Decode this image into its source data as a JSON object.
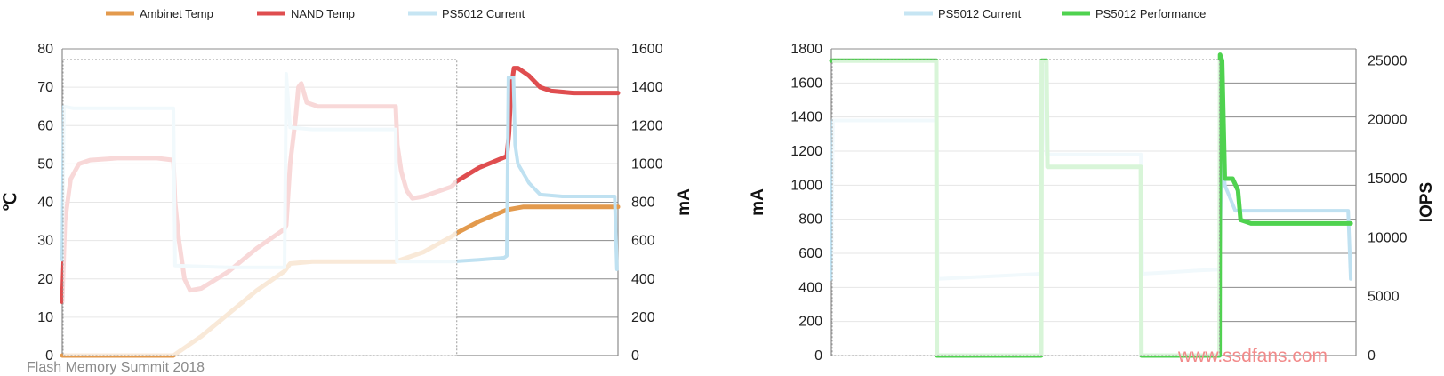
{
  "chart_data": [
    {
      "type": "line",
      "legend": [
        {
          "name": "Ambinet Temp",
          "color": "#e39a4d"
        },
        {
          "name": "NAND Temp",
          "color": "#df4d4f"
        },
        {
          "name": "PS5012 Current",
          "color": "#c6e5f3"
        }
      ],
      "legend_position": "top",
      "ylabel": "℃",
      "y2label": "mA",
      "ylim": [
        0,
        80
      ],
      "y2lim": [
        0,
        1600
      ],
      "yticks": [
        "0",
        "10",
        "20",
        "30",
        "40",
        "50",
        "60",
        "70",
        "80"
      ],
      "y2ticks": [
        "0",
        "200",
        "400",
        "600",
        "800",
        "1000",
        "1200",
        "1400",
        "1600"
      ],
      "grid": true,
      "x_range": [
        0,
        100
      ],
      "faded_region_end": 71,
      "series": [
        {
          "name": "NAND Temp",
          "axis": "left",
          "color": "#df4d4f",
          "width": 5,
          "points": [
            [
              0,
              14
            ],
            [
              0.5,
              35
            ],
            [
              1.5,
              46
            ],
            [
              3,
              50
            ],
            [
              5,
              51
            ],
            [
              10,
              51.5
            ],
            [
              17,
              51.5
            ],
            [
              20,
              51
            ],
            [
              20.3,
              40
            ],
            [
              21,
              30
            ],
            [
              22,
              20
            ],
            [
              23,
              17
            ],
            [
              25,
              17.5
            ],
            [
              30,
              22
            ],
            [
              35,
              28
            ],
            [
              40,
              33
            ],
            [
              40.3,
              34
            ],
            [
              41,
              50
            ],
            [
              42,
              62
            ],
            [
              42.5,
              70
            ],
            [
              43,
              71
            ],
            [
              44,
              66
            ],
            [
              46,
              65
            ],
            [
              55,
              65
            ],
            [
              60,
              65
            ],
            [
              60.3,
              55
            ],
            [
              61,
              48
            ],
            [
              62,
              43
            ],
            [
              63,
              41
            ],
            [
              65,
              41.5
            ],
            [
              70,
              44
            ],
            [
              71,
              45.5
            ],
            [
              75,
              49
            ],
            [
              80,
              52
            ],
            [
              80.4,
              58
            ],
            [
              80.8,
              70
            ],
            [
              81.3,
              75
            ],
            [
              82,
              75
            ],
            [
              84,
              73
            ],
            [
              86,
              70
            ],
            [
              88,
              69
            ],
            [
              92,
              68.5
            ],
            [
              100,
              68.5
            ]
          ]
        },
        {
          "name": "Ambinet Temp",
          "axis": "left",
          "color": "#e39a4d",
          "width": 5,
          "points": [
            [
              0,
              0
            ],
            [
              10,
              0
            ],
            [
              20,
              0
            ],
            [
              25,
              5
            ],
            [
              30,
              11
            ],
            [
              35,
              17
            ],
            [
              40,
              22
            ],
            [
              41,
              24
            ],
            [
              45,
              24.5
            ],
            [
              55,
              24.5
            ],
            [
              60,
              24.5
            ],
            [
              65,
              27
            ],
            [
              70,
              31
            ],
            [
              71,
              32
            ],
            [
              75,
              35
            ],
            [
              80,
              38
            ],
            [
              83,
              38.8
            ],
            [
              90,
              38.8
            ],
            [
              100,
              38.8
            ]
          ]
        },
        {
          "name": "PS5012 Current",
          "axis": "right",
          "color": "#bfe1f1",
          "width": 4,
          "points": [
            [
              0,
              500
            ],
            [
              0.3,
              1300
            ],
            [
              2,
              1290
            ],
            [
              20,
              1290
            ],
            [
              20.3,
              470
            ],
            [
              30,
              460
            ],
            [
              40,
              460
            ],
            [
              40.3,
              1470
            ],
            [
              41,
              1190
            ],
            [
              45,
              1180
            ],
            [
              60,
              1180
            ],
            [
              60.2,
              490
            ],
            [
              70,
              490
            ],
            [
              75,
              500
            ],
            [
              79.5,
              510
            ],
            [
              80,
              520
            ],
            [
              80.3,
              1450
            ],
            [
              81.2,
              1450
            ],
            [
              81.5,
              1100
            ],
            [
              82,
              1000
            ],
            [
              84,
              900
            ],
            [
              86,
              840
            ],
            [
              90,
              830
            ],
            [
              95,
              830
            ],
            [
              99.4,
              830
            ],
            [
              99.8,
              450
            ]
          ]
        }
      ]
    },
    {
      "type": "line",
      "legend": [
        {
          "name": "PS5012 Current",
          "color": "#c6e5f3"
        },
        {
          "name": "PS5012 Performance",
          "color": "#4fd24f"
        }
      ],
      "legend_position": "top",
      "ylabel": "mA",
      "y2label": "IOPS",
      "ylim": [
        0,
        1800
      ],
      "y2lim": [
        0,
        26000
      ],
      "yticks": [
        "0",
        "200",
        "400",
        "600",
        "800",
        "1000",
        "1200",
        "1400",
        "1600",
        "1800"
      ],
      "y2ticks": [
        "0",
        "5000",
        "10000",
        "15000",
        "20000",
        "25000"
      ],
      "grid": true,
      "x_range": [
        0,
        100
      ],
      "faded_region_end": 74,
      "series": [
        {
          "name": "PS5012 Current",
          "axis": "left",
          "color": "#bfe1f1",
          "width": 4,
          "points": [
            [
              0,
              450
            ],
            [
              0.3,
              1380
            ],
            [
              20,
              1380
            ],
            [
              20.3,
              450
            ],
            [
              40,
              480
            ],
            [
              40.3,
              1700
            ],
            [
              41,
              1180
            ],
            [
              50,
              1180
            ],
            [
              59,
              1180
            ],
            [
              59.3,
              480
            ],
            [
              65,
              490
            ],
            [
              70,
              500
            ],
            [
              74,
              505
            ],
            [
              74.5,
              1350
            ],
            [
              75,
              1000
            ],
            [
              77,
              850
            ],
            [
              85,
              850
            ],
            [
              98.5,
              850
            ],
            [
              99,
              450
            ]
          ]
        },
        {
          "name": "PS5012 Performance",
          "axis": "right",
          "color": "#4fd24f",
          "width": 5,
          "points": [
            [
              0,
              25000
            ],
            [
              20,
              25000
            ],
            [
              20.1,
              0
            ],
            [
              40,
              0
            ],
            [
              40.1,
              25000
            ],
            [
              41,
              25000
            ],
            [
              41.2,
              16000
            ],
            [
              59,
              16000
            ],
            [
              59.1,
              0
            ],
            [
              74,
              0
            ],
            [
              74.1,
              25500
            ],
            [
              74.5,
              25000
            ],
            [
              75,
              15000
            ],
            [
              76.5,
              15000
            ],
            [
              77.5,
              14000
            ],
            [
              78,
              11500
            ],
            [
              80,
              11200
            ],
            [
              99,
              11200
            ]
          ]
        }
      ]
    }
  ],
  "watermark": "www.ssdfans.com",
  "footer": "Flash Memory Summit 2018"
}
